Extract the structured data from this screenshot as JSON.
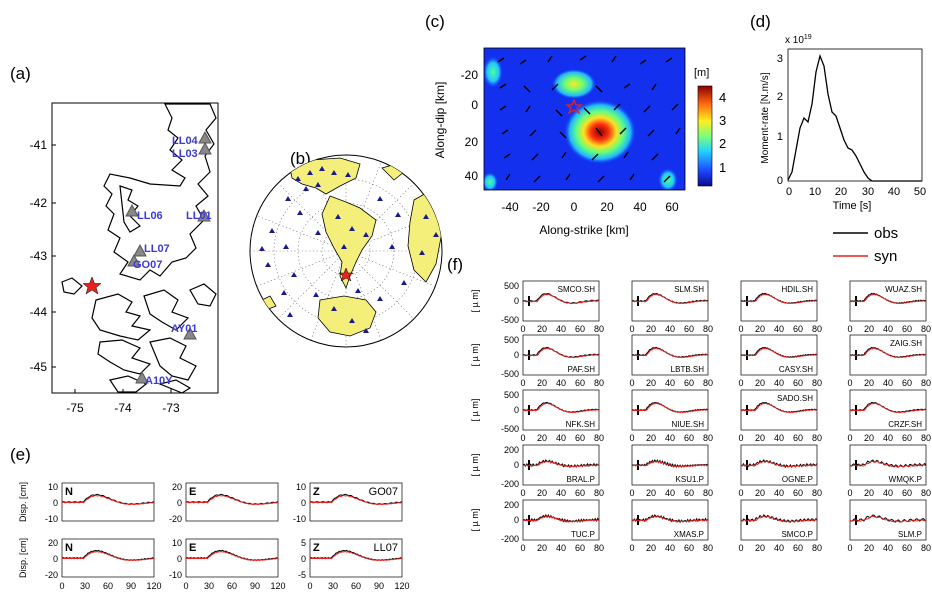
{
  "panels": {
    "a": {
      "label": "(a)",
      "yticks": [
        "-41",
        "-42",
        "-43",
        "-44",
        "-45"
      ],
      "xticks": [
        "-75",
        "-74",
        "-73"
      ],
      "stations": [
        "LL04",
        "LL03",
        "LL06",
        "LL01",
        "LL07",
        "GO07",
        "AY01",
        "A10Y"
      ]
    },
    "b": {
      "label": "(b)"
    },
    "c": {
      "label": "(c)",
      "ylabel": "Along-dip [km]",
      "xlabel": "Along-strike [km]",
      "yticks": [
        "-20",
        "0",
        "20",
        "40"
      ],
      "xticks": [
        "-40",
        "-20",
        "0",
        "20",
        "40",
        "60"
      ],
      "colorbar_unit": "[m]",
      "colorbar_ticks": [
        "4",
        "3",
        "2",
        "1"
      ]
    },
    "d": {
      "label": "(d)",
      "exponent": "x 10",
      "exponent_power": "19",
      "ylabel": "Moment-rate [N.m/s]",
      "xlabel": "Time [s]",
      "yticks": [
        "3",
        "2",
        "1",
        "0"
      ],
      "xticks": [
        "0",
        "10",
        "20",
        "30",
        "40",
        "50"
      ]
    },
    "e": {
      "label": "(e)",
      "ylabel": "Disp. [cm]",
      "xticks": [
        "0",
        "30",
        "60",
        "90",
        "120"
      ],
      "rows": [
        {
          "station": "GO07",
          "plots": [
            {
              "comp": "N",
              "yticks": [
                "10",
                "0",
                "-10"
              ]
            },
            {
              "comp": "E",
              "yticks": [
                "20",
                "0",
                "-20"
              ]
            },
            {
              "comp": "Z",
              "yticks": [
                "10",
                "0",
                "-10"
              ]
            }
          ]
        },
        {
          "station": "LL07",
          "plots": [
            {
              "comp": "N",
              "yticks": [
                "20",
                "0",
                "-20"
              ]
            },
            {
              "comp": "E",
              "yticks": [
                "10",
                "0",
                "-10"
              ]
            },
            {
              "comp": "Z",
              "yticks": [
                "5",
                "0",
                "-5"
              ]
            }
          ]
        }
      ]
    },
    "f": {
      "label": "(f)",
      "ylabel": "[ µ m]",
      "xticks": [
        "0",
        "20",
        "40",
        "60",
        "80"
      ],
      "rows": [
        {
          "yticks": [
            "500",
            "0",
            "-500"
          ],
          "stations": [
            "SMCO.SH",
            "SLM.SH",
            "HDIL.SH",
            "WUAZ.SH"
          ]
        },
        {
          "yticks": [
            "500",
            "0",
            "-500"
          ],
          "stations": [
            "PAF.SH",
            "LBTB.SH",
            "CASY.SH",
            "ZAIG.SH"
          ]
        },
        {
          "yticks": [
            "500",
            "0",
            "-500"
          ],
          "stations": [
            "NFK.SH",
            "NIUE.SH",
            "SADO.SH",
            "CRZF.SH"
          ]
        },
        {
          "yticks": [
            "200",
            "0",
            "-200"
          ],
          "stations": [
            "BRAL.P",
            "KSU1.P",
            "OGNE.P",
            "WMQK.P"
          ]
        },
        {
          "yticks": [
            "200",
            "0",
            "-200"
          ],
          "stations": [
            "TUC.P",
            "XMAS.P",
            "SMCO.P",
            "SLM.P"
          ]
        }
      ]
    }
  },
  "legend": {
    "obs": "obs",
    "syn": "syn"
  },
  "colors": {
    "obs": "#000000",
    "syn": "#e8211f",
    "station": "#3b3bd6",
    "continent": "#f4ef7a",
    "star": "#e8211f"
  }
}
